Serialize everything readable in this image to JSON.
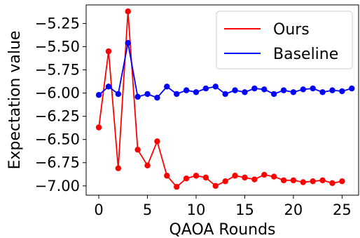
{
  "chart_data": {
    "type": "line",
    "xlabel": "QAOA Rounds",
    "ylabel": "Expectation value",
    "xlim": [
      -1.3,
      26.7
    ],
    "ylim": [
      -7.1,
      -5.05
    ],
    "xticks": [
      0,
      5,
      10,
      15,
      20,
      25
    ],
    "yticks": [
      -7.0,
      -6.75,
      -6.5,
      -6.25,
      -6.0,
      -5.75,
      -5.5,
      -5.25
    ],
    "ytick_labels": [
      "−7.00",
      "−6.75",
      "−6.50",
      "−6.25",
      "−6.00",
      "−5.75",
      "−5.50",
      "−5.25"
    ],
    "xtick_labels": [
      "0",
      "5",
      "10",
      "15",
      "20",
      "25"
    ],
    "grid": false,
    "legend_position": "top-right",
    "series": [
      {
        "name": "Ours",
        "color": "#ff0000",
        "x": [
          0,
          1,
          2,
          3,
          4,
          5,
          6,
          7,
          8,
          9,
          10,
          11,
          12,
          13,
          14,
          15,
          16,
          17,
          18,
          19,
          20,
          21,
          22,
          23,
          24,
          25
        ],
        "values": [
          -6.37,
          -5.55,
          -6.81,
          -5.12,
          -6.61,
          -6.78,
          -6.52,
          -6.89,
          -7.01,
          -6.92,
          -6.89,
          -6.91,
          -7.0,
          -6.95,
          -6.89,
          -6.91,
          -6.93,
          -6.88,
          -6.9,
          -6.94,
          -6.94,
          -6.96,
          -6.95,
          -6.94,
          -6.97,
          -6.95
        ]
      },
      {
        "name": "Baseline",
        "color": "#0000ff",
        "x": [
          0,
          1,
          2,
          3,
          4,
          5,
          6,
          7,
          8,
          9,
          10,
          11,
          12,
          13,
          14,
          15,
          16,
          17,
          18,
          19,
          20,
          21,
          22,
          23,
          24,
          25,
          26
        ],
        "values": [
          -6.02,
          -5.93,
          -6.01,
          -5.46,
          -6.04,
          -6.01,
          -6.05,
          -5.93,
          -6.01,
          -5.97,
          -5.99,
          -5.95,
          -5.93,
          -6.01,
          -5.97,
          -5.99,
          -5.95,
          -5.96,
          -6.01,
          -5.97,
          -5.99,
          -5.96,
          -5.95,
          -5.99,
          -5.97,
          -5.98,
          -5.95
        ]
      }
    ]
  }
}
